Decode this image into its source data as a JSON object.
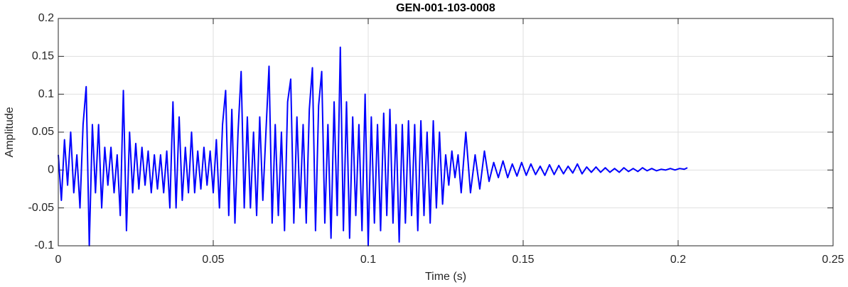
{
  "chart_data": {
    "type": "line",
    "title": "GEN-001-103-0008",
    "xlabel": "Time (s)",
    "ylabel": "Amplitude",
    "xlim": [
      0,
      0.25
    ],
    "xticks": [
      0,
      0.05,
      0.1,
      0.15,
      0.2,
      0.25
    ],
    "ylim": [
      -0.1,
      0.2
    ],
    "yticks": [
      -0.1,
      -0.05,
      0,
      0.05,
      0.1,
      0.15,
      0.2
    ],
    "grid": true,
    "series": [
      {
        "color": "#0000ff",
        "x": [
          0,
          0.001,
          0.002,
          0.003,
          0.004,
          0.005,
          0.006,
          0.007,
          0.008,
          0.009,
          0.01,
          0.011,
          0.012,
          0.013,
          0.014,
          0.015,
          0.016,
          0.017,
          0.018,
          0.019,
          0.02,
          0.021,
          0.022,
          0.023,
          0.024,
          0.025,
          0.026,
          0.027,
          0.028,
          0.029,
          0.03,
          0.031,
          0.032,
          0.033,
          0.034,
          0.035,
          0.036,
          0.037,
          0.038,
          0.039,
          0.04,
          0.041,
          0.042,
          0.043,
          0.044,
          0.045,
          0.046,
          0.047,
          0.048,
          0.049,
          0.05,
          0.051,
          0.052,
          0.053,
          0.054,
          0.055,
          0.056,
          0.057,
          0.058,
          0.059,
          0.06,
          0.061,
          0.062,
          0.063,
          0.064,
          0.065,
          0.066,
          0.067,
          0.068,
          0.069,
          0.07,
          0.071,
          0.072,
          0.073,
          0.074,
          0.075,
          0.076,
          0.077,
          0.078,
          0.079,
          0.08,
          0.081,
          0.082,
          0.083,
          0.084,
          0.085,
          0.086,
          0.087,
          0.088,
          0.089,
          0.09,
          0.091,
          0.092,
          0.093,
          0.094,
          0.095,
          0.096,
          0.097,
          0.098,
          0.099,
          0.1,
          0.101,
          0.102,
          0.103,
          0.104,
          0.105,
          0.106,
          0.107,
          0.108,
          0.109,
          0.11,
          0.111,
          0.112,
          0.113,
          0.114,
          0.115,
          0.116,
          0.117,
          0.118,
          0.119,
          0.12,
          0.121,
          0.122,
          0.123,
          0.124,
          0.125,
          0.126,
          0.127,
          0.128,
          0.129,
          0.13,
          0.1315,
          0.133,
          0.1345,
          0.136,
          0.1375,
          0.139,
          0.1405,
          0.142,
          0.1435,
          0.145,
          0.1465,
          0.148,
          0.1495,
          0.151,
          0.1525,
          0.154,
          0.1555,
          0.157,
          0.1585,
          0.16,
          0.1615,
          0.163,
          0.1645,
          0.166,
          0.1675,
          0.169,
          0.1705,
          0.172,
          0.1735,
          0.175,
          0.1765,
          0.178,
          0.1795,
          0.181,
          0.1825,
          0.184,
          0.1855,
          0.187,
          0.1885,
          0.19,
          0.1915,
          0.193,
          0.1945,
          0.196,
          0.1975,
          0.199,
          0.2005,
          0.202,
          0.203
        ],
        "values": [
          0.02,
          -0.04,
          0.04,
          -0.02,
          0.05,
          -0.03,
          0.02,
          -0.05,
          0.06,
          0.11,
          -0.1,
          0.06,
          -0.03,
          0.06,
          -0.05,
          0.03,
          -0.02,
          0.03,
          -0.03,
          0.02,
          -0.06,
          0.105,
          -0.08,
          0.05,
          -0.03,
          0.035,
          -0.025,
          0.03,
          -0.02,
          0.025,
          -0.03,
          0.02,
          -0.025,
          0.02,
          -0.03,
          0.025,
          -0.05,
          0.09,
          -0.05,
          0.07,
          -0.04,
          0.03,
          -0.03,
          0.05,
          -0.03,
          0.025,
          -0.025,
          0.03,
          -0.02,
          0.025,
          -0.03,
          0.04,
          -0.05,
          0.06,
          0.105,
          -0.06,
          0.08,
          -0.07,
          0.05,
          0.13,
          -0.05,
          0.07,
          -0.05,
          0.05,
          -0.06,
          0.07,
          -0.04,
          0.05,
          0.137,
          -0.07,
          0.06,
          -0.06,
          0.05,
          -0.08,
          0.09,
          0.12,
          -0.07,
          0.07,
          -0.05,
          0.06,
          -0.07,
          0.08,
          0.135,
          -0.08,
          0.085,
          0.13,
          -0.07,
          0.06,
          -0.09,
          0.09,
          -0.06,
          0.162,
          -0.08,
          0.09,
          -0.09,
          0.07,
          -0.06,
          0.06,
          -0.08,
          0.1,
          -0.1,
          0.07,
          -0.07,
          0.06,
          -0.08,
          0.075,
          -0.06,
          0.08,
          -0.07,
          0.06,
          -0.095,
          0.06,
          -0.07,
          0.065,
          -0.06,
          0.06,
          -0.08,
          0.065,
          -0.06,
          0.05,
          -0.07,
          0.065,
          -0.05,
          0.05,
          -0.045,
          0.02,
          -0.02,
          0.025,
          -0.01,
          0.02,
          -0.03,
          0.05,
          -0.03,
          0.02,
          -0.025,
          0.025,
          -0.015,
          0.01,
          -0.01,
          0.012,
          -0.01,
          0.008,
          -0.008,
          0.01,
          -0.007,
          0.008,
          -0.006,
          0.005,
          -0.007,
          0.007,
          -0.006,
          0.006,
          -0.005,
          0.005,
          -0.004,
          0.008,
          -0.005,
          0.004,
          -0.003,
          0.004,
          -0.003,
          0.003,
          -0.003,
          0.002,
          -0.003,
          0.003,
          -0.002,
          0.002,
          -0.002,
          0.003,
          -0.001,
          0.002,
          -0.001,
          0.001,
          0,
          0.002,
          0,
          0.002,
          0.001,
          0.003
        ]
      }
    ]
  }
}
